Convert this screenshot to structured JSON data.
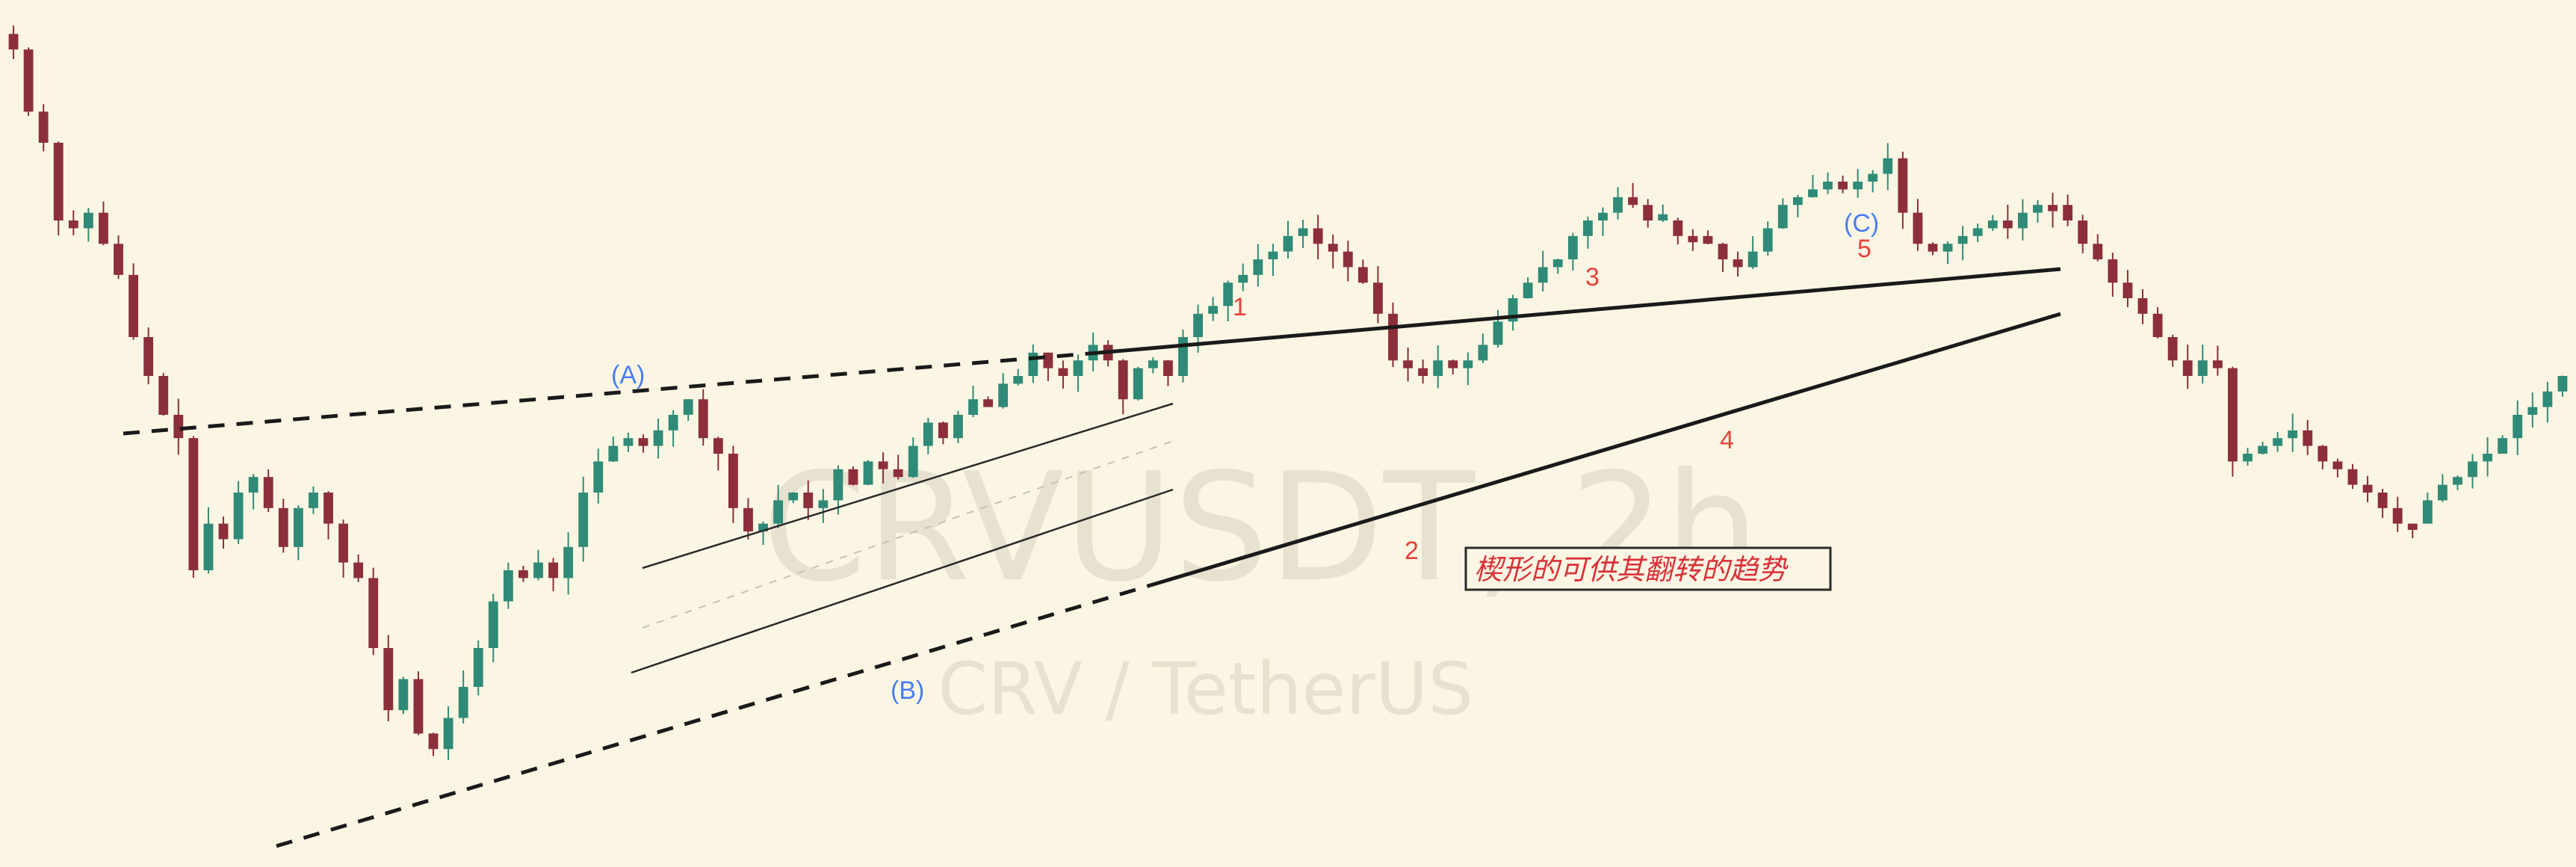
{
  "watermark": {
    "symbol": "CRVUSDT, 2h",
    "description": "CRV / TetherUS"
  },
  "annotation": "楔形的可供其翻转的趋势",
  "wave_labels": {
    "A": "(A)",
    "B": "(B)",
    "C": "(C)",
    "w1": "1",
    "w2": "2",
    "w3": "3",
    "w4": "4",
    "w5": "5"
  },
  "colors": {
    "background": "#fbf6e3",
    "up_candle": "#2f8b77",
    "down_candle": "#8c2f3b",
    "trendline": "#1a1a1a",
    "wave_numbers": "#e8433e",
    "wave_letters": "#4a7df0",
    "note_text": "#d8323a"
  },
  "chart_data": {
    "type": "candlestick",
    "symbol": "CRVUSDT",
    "timeframe": "2h",
    "axes_visible": false,
    "grid": false,
    "ylim": [
      0,
      100
    ],
    "series": [
      {
        "name": "CRVUSDT",
        "values": [
          97,
          89,
          85,
          75,
          74,
          76,
          72,
          68,
          60,
          55,
          50,
          47,
          30,
          36,
          34,
          40,
          42,
          38,
          33,
          38,
          40,
          36,
          31,
          29,
          20,
          12,
          16,
          9,
          7,
          11,
          15,
          20,
          26,
          30,
          29,
          31,
          29,
          33,
          40,
          44,
          46,
          47,
          46,
          48,
          50,
          52,
          47,
          45,
          38,
          35,
          36,
          39,
          40,
          38,
          39,
          43,
          41,
          44,
          43,
          42,
          46,
          49,
          47,
          50,
          52,
          51,
          54,
          55,
          58,
          56,
          55,
          57,
          59,
          57,
          52,
          56,
          57,
          55,
          60,
          63,
          64,
          67,
          68,
          70,
          71,
          73,
          74,
          72,
          71,
          69,
          67,
          63,
          57,
          56,
          55,
          57,
          56,
          57,
          59,
          62,
          65,
          67,
          69,
          70,
          73,
          75,
          76,
          78,
          77,
          75,
          75,
          73,
          73,
          72,
          70,
          69,
          71,
          74,
          77,
          78,
          79,
          80,
          79,
          80,
          81,
          83,
          76,
          72,
          71,
          72,
          73,
          74,
          75,
          74,
          76,
          77,
          77,
          75,
          72,
          70,
          67,
          65,
          63,
          60,
          57,
          55,
          57,
          56,
          44,
          45,
          46,
          47,
          48,
          46,
          44,
          43,
          41,
          40,
          38,
          36,
          36,
          39,
          41,
          42,
          44,
          45,
          47,
          50,
          51,
          53,
          55
        ]
      }
    ],
    "wave_points": [
      {
        "label": "(A)",
        "index": 45
      },
      {
        "label": "(B)",
        "index": 59
      },
      {
        "label": "1",
        "index": 91
      },
      {
        "label": "2",
        "index": 104
      },
      {
        "label": "3",
        "index": 117
      },
      {
        "label": "4",
        "index": 126
      },
      {
        "label": "5",
        "index": 137
      },
      {
        "label": "(C)",
        "index": 137
      }
    ]
  }
}
